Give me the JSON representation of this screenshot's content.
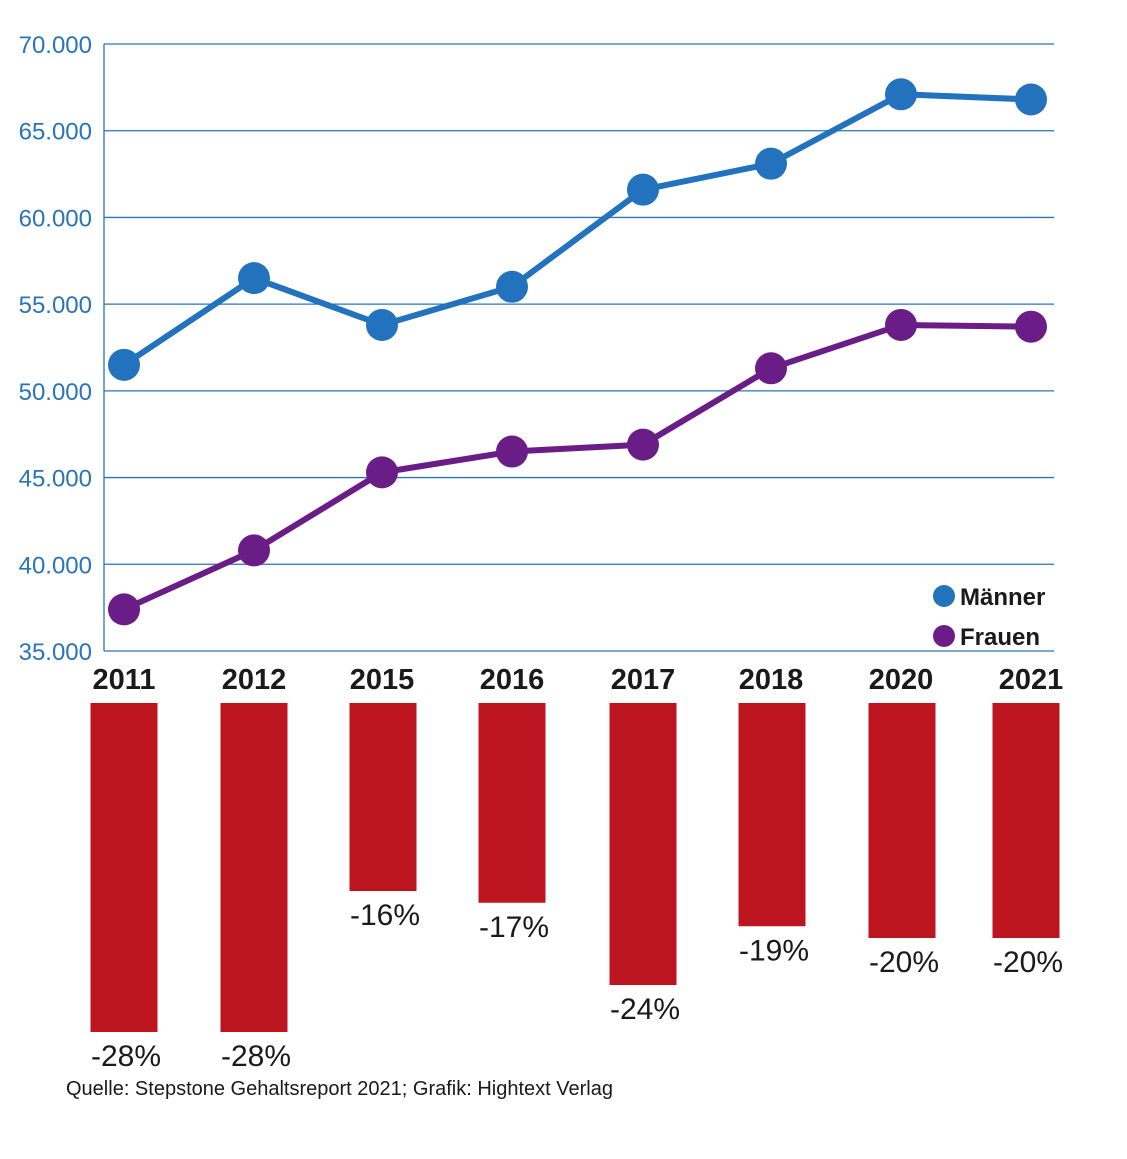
{
  "chart_data": {
    "type": "line",
    "categories": [
      "2011",
      "2012",
      "2015",
      "2016",
      "2017",
      "2018",
      "2020",
      "2021"
    ],
    "series": [
      {
        "name": "Männer",
        "color": "#2272be",
        "values": [
          51500,
          56500,
          53800,
          56000,
          61600,
          63100,
          67100,
          66800
        ]
      },
      {
        "name": "Frauen",
        "color": "#6a1d86",
        "values": [
          37400,
          40800,
          45300,
          46500,
          46900,
          51300,
          53800,
          53700
        ]
      }
    ],
    "ylim": [
      35000,
      70000
    ],
    "yticks": [
      {
        "value": 70000,
        "label": "70.000"
      },
      {
        "value": 65000,
        "label": "65.000"
      },
      {
        "value": 60000,
        "label": "60.000"
      },
      {
        "value": 55000,
        "label": "55.000"
      },
      {
        "value": 50000,
        "label": "50.000"
      },
      {
        "value": 45000,
        "label": "45.000"
      },
      {
        "value": 40000,
        "label": "40.000"
      },
      {
        "value": 35000,
        "label": "35.000"
      }
    ],
    "grid": true,
    "legend_position": "bottom-right",
    "gap_bars": {
      "type": "bar",
      "color": "#bd1520",
      "values": [
        -28,
        -28,
        -16,
        -17,
        -24,
        -19,
        -20,
        -20
      ],
      "labels": [
        "-28%",
        "-28%",
        "-16%",
        "-17%",
        "-24%",
        "-19%",
        "-20%",
        "-20%"
      ]
    }
  },
  "source": "Quelle: Stepstone Gehaltsreport 2021; Grafik: Hightext Verlag"
}
